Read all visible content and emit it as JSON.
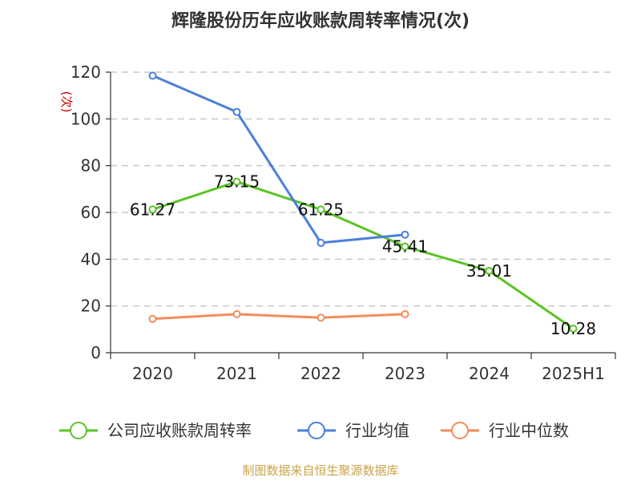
{
  "chart_data": {
    "type": "line",
    "title": "辉隆股份历年应收账款周转率情况(次)",
    "ylabel": "(次)",
    "categories": [
      "2020",
      "2021",
      "2022",
      "2023",
      "2024",
      "2025H1"
    ],
    "ylim": [
      0,
      120
    ],
    "yticks": [
      0,
      20,
      40,
      60,
      80,
      100,
      120
    ],
    "grid": true,
    "legend_position": "bottom",
    "series": [
      {
        "name": "公司应收账款周转率",
        "color": "#5cc325",
        "values": [
          61.27,
          73.15,
          61.25,
          45.41,
          35.01,
          10.28
        ],
        "labels": [
          "61.27",
          "73.15",
          "61.25",
          "45.41",
          "35.01",
          "10.28"
        ]
      },
      {
        "name": "行业均值",
        "color": "#4b7fd9",
        "values": [
          118.5,
          103,
          47,
          50.5,
          null,
          null
        ]
      },
      {
        "name": "行业中位数",
        "color": "#f28c5b",
        "values": [
          14.5,
          16.5,
          15,
          16.5,
          null,
          null
        ]
      }
    ]
  },
  "source": "制图数据来自恒生聚源数据库"
}
